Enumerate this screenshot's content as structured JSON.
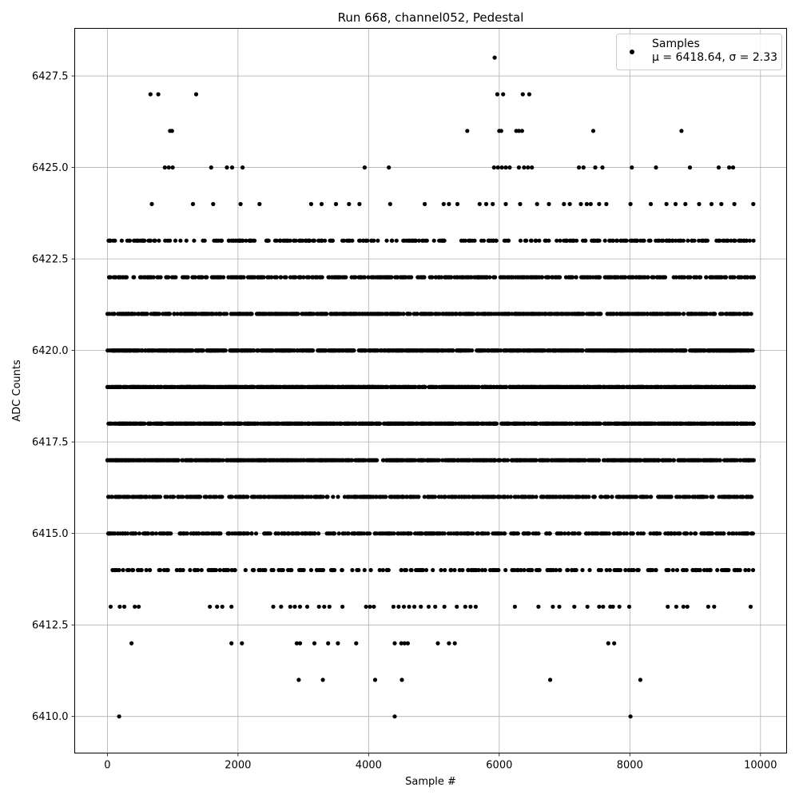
{
  "chart_data": {
    "type": "scatter",
    "title": "Run 668, channel052, Pedestal",
    "xlabel": "Sample #",
    "ylabel": "ADC Counts",
    "xlim": [
      -500,
      10400
    ],
    "ylim": [
      6409.0,
      6428.8
    ],
    "xticks": [
      0,
      2000,
      4000,
      6000,
      8000,
      10000
    ],
    "xtick_labels": [
      "0",
      "2000",
      "4000",
      "6000",
      "8000",
      "10000"
    ],
    "yticks": [
      6410.0,
      6412.5,
      6415.0,
      6417.5,
      6420.0,
      6422.5,
      6425.0,
      6427.5
    ],
    "ytick_labels": [
      "6410.0",
      "6412.5",
      "6415.0",
      "6417.5",
      "6420.0",
      "6422.5",
      "6425.0",
      "6427.5"
    ],
    "grid": true,
    "legend_position": "top-right",
    "marker_color": "#000000",
    "series": [
      {
        "name": "Samples",
        "stats_label": "μ = 6418.64, σ = 2.33",
        "dense_levels": [
          {
            "y": 6414,
            "x_min": 0,
            "x_max": 9900,
            "count": 240
          },
          {
            "y": 6415,
            "x_min": 0,
            "x_max": 9900,
            "count": 420
          },
          {
            "y": 6416,
            "x_min": 0,
            "x_max": 9900,
            "count": 520
          },
          {
            "y": 6417,
            "x_min": 0,
            "x_max": 9900,
            "count": 900
          },
          {
            "y": 6418,
            "x_min": 0,
            "x_max": 9900,
            "count": 1100
          },
          {
            "y": 6419,
            "x_min": 0,
            "x_max": 9900,
            "count": 1150
          },
          {
            "y": 6420,
            "x_min": 0,
            "x_max": 9900,
            "count": 950
          },
          {
            "y": 6421,
            "x_min": 0,
            "x_max": 9900,
            "count": 700
          },
          {
            "y": 6422,
            "x_min": 0,
            "x_max": 9900,
            "count": 500
          },
          {
            "y": 6423,
            "x_min": 0,
            "x_max": 9900,
            "count": 300
          }
        ],
        "sparse_points": [
          {
            "x": 180,
            "y": 6410
          },
          {
            "x": 4400,
            "y": 6410
          },
          {
            "x": 8010,
            "y": 6410
          },
          {
            "x": 2930,
            "y": 6411
          },
          {
            "x": 3300,
            "y": 6411
          },
          {
            "x": 4100,
            "y": 6411
          },
          {
            "x": 4510,
            "y": 6411
          },
          {
            "x": 6780,
            "y": 6411
          },
          {
            "x": 8160,
            "y": 6411
          },
          {
            "x": 370,
            "y": 6412
          },
          {
            "x": 1900,
            "y": 6412
          },
          {
            "x": 2060,
            "y": 6412
          },
          {
            "x": 2900,
            "y": 6412
          },
          {
            "x": 2950,
            "y": 6412
          },
          {
            "x": 3170,
            "y": 6412
          },
          {
            "x": 3380,
            "y": 6412
          },
          {
            "x": 3530,
            "y": 6412
          },
          {
            "x": 3810,
            "y": 6412
          },
          {
            "x": 4400,
            "y": 6412
          },
          {
            "x": 4500,
            "y": 6412
          },
          {
            "x": 4550,
            "y": 6412
          },
          {
            "x": 4600,
            "y": 6412
          },
          {
            "x": 5060,
            "y": 6412
          },
          {
            "x": 5230,
            "y": 6412
          },
          {
            "x": 5320,
            "y": 6412
          },
          {
            "x": 7670,
            "y": 6412
          },
          {
            "x": 7760,
            "y": 6412
          },
          {
            "x": 50,
            "y": 6413
          },
          {
            "x": 190,
            "y": 6413
          },
          {
            "x": 260,
            "y": 6413
          },
          {
            "x": 420,
            "y": 6413
          },
          {
            "x": 480,
            "y": 6413
          },
          {
            "x": 1570,
            "y": 6413
          },
          {
            "x": 1680,
            "y": 6413
          },
          {
            "x": 1760,
            "y": 6413
          },
          {
            "x": 1900,
            "y": 6413
          },
          {
            "x": 2540,
            "y": 6413
          },
          {
            "x": 2660,
            "y": 6413
          },
          {
            "x": 2800,
            "y": 6413
          },
          {
            "x": 2870,
            "y": 6413
          },
          {
            "x": 2950,
            "y": 6413
          },
          {
            "x": 3060,
            "y": 6413
          },
          {
            "x": 3240,
            "y": 6413
          },
          {
            "x": 3320,
            "y": 6413
          },
          {
            "x": 3400,
            "y": 6413
          },
          {
            "x": 3600,
            "y": 6413
          },
          {
            "x": 3960,
            "y": 6413
          },
          {
            "x": 4020,
            "y": 6413
          },
          {
            "x": 4080,
            "y": 6413
          },
          {
            "x": 4380,
            "y": 6413
          },
          {
            "x": 4460,
            "y": 6413
          },
          {
            "x": 4540,
            "y": 6413
          },
          {
            "x": 4620,
            "y": 6413
          },
          {
            "x": 4700,
            "y": 6413
          },
          {
            "x": 4800,
            "y": 6413
          },
          {
            "x": 4920,
            "y": 6413
          },
          {
            "x": 5020,
            "y": 6413
          },
          {
            "x": 5160,
            "y": 6413
          },
          {
            "x": 5350,
            "y": 6413
          },
          {
            "x": 5480,
            "y": 6413
          },
          {
            "x": 5560,
            "y": 6413
          },
          {
            "x": 5640,
            "y": 6413
          },
          {
            "x": 6240,
            "y": 6413
          },
          {
            "x": 6600,
            "y": 6413
          },
          {
            "x": 6820,
            "y": 6413
          },
          {
            "x": 6920,
            "y": 6413
          },
          {
            "x": 7150,
            "y": 6413
          },
          {
            "x": 7350,
            "y": 6413
          },
          {
            "x": 7530,
            "y": 6413
          },
          {
            "x": 7590,
            "y": 6413
          },
          {
            "x": 7700,
            "y": 6413
          },
          {
            "x": 7740,
            "y": 6413
          },
          {
            "x": 7840,
            "y": 6413
          },
          {
            "x": 7990,
            "y": 6413
          },
          {
            "x": 8580,
            "y": 6413
          },
          {
            "x": 8710,
            "y": 6413
          },
          {
            "x": 8820,
            "y": 6413
          },
          {
            "x": 8880,
            "y": 6413
          },
          {
            "x": 9200,
            "y": 6413
          },
          {
            "x": 9290,
            "y": 6413
          },
          {
            "x": 9850,
            "y": 6413
          },
          {
            "x": 680,
            "y": 6424
          },
          {
            "x": 1310,
            "y": 6424
          },
          {
            "x": 1620,
            "y": 6424
          },
          {
            "x": 2040,
            "y": 6424
          },
          {
            "x": 2330,
            "y": 6424
          },
          {
            "x": 3120,
            "y": 6424
          },
          {
            "x": 3280,
            "y": 6424
          },
          {
            "x": 3500,
            "y": 6424
          },
          {
            "x": 3700,
            "y": 6424
          },
          {
            "x": 3860,
            "y": 6424
          },
          {
            "x": 4330,
            "y": 6424
          },
          {
            "x": 4860,
            "y": 6424
          },
          {
            "x": 5150,
            "y": 6424
          },
          {
            "x": 5230,
            "y": 6424
          },
          {
            "x": 5360,
            "y": 6424
          },
          {
            "x": 5700,
            "y": 6424
          },
          {
            "x": 5800,
            "y": 6424
          },
          {
            "x": 5900,
            "y": 6424
          },
          {
            "x": 6100,
            "y": 6424
          },
          {
            "x": 6320,
            "y": 6424
          },
          {
            "x": 6580,
            "y": 6424
          },
          {
            "x": 6760,
            "y": 6424
          },
          {
            "x": 6990,
            "y": 6424
          },
          {
            "x": 7080,
            "y": 6424
          },
          {
            "x": 7250,
            "y": 6424
          },
          {
            "x": 7340,
            "y": 6424
          },
          {
            "x": 7400,
            "y": 6424
          },
          {
            "x": 7530,
            "y": 6424
          },
          {
            "x": 7640,
            "y": 6424
          },
          {
            "x": 8010,
            "y": 6424
          },
          {
            "x": 8320,
            "y": 6424
          },
          {
            "x": 8560,
            "y": 6424
          },
          {
            "x": 8700,
            "y": 6424
          },
          {
            "x": 8850,
            "y": 6424
          },
          {
            "x": 9060,
            "y": 6424
          },
          {
            "x": 9250,
            "y": 6424
          },
          {
            "x": 9400,
            "y": 6424
          },
          {
            "x": 9600,
            "y": 6424
          },
          {
            "x": 9890,
            "y": 6424
          },
          {
            "x": 880,
            "y": 6425
          },
          {
            "x": 940,
            "y": 6425
          },
          {
            "x": 1000,
            "y": 6425
          },
          {
            "x": 1590,
            "y": 6425
          },
          {
            "x": 1830,
            "y": 6425
          },
          {
            "x": 1910,
            "y": 6425
          },
          {
            "x": 2070,
            "y": 6425
          },
          {
            "x": 3940,
            "y": 6425
          },
          {
            "x": 4310,
            "y": 6425
          },
          {
            "x": 5920,
            "y": 6425
          },
          {
            "x": 5980,
            "y": 6425
          },
          {
            "x": 6040,
            "y": 6425
          },
          {
            "x": 6100,
            "y": 6425
          },
          {
            "x": 6160,
            "y": 6425
          },
          {
            "x": 6300,
            "y": 6425
          },
          {
            "x": 6380,
            "y": 6425
          },
          {
            "x": 6440,
            "y": 6425
          },
          {
            "x": 6500,
            "y": 6425
          },
          {
            "x": 7220,
            "y": 6425
          },
          {
            "x": 7290,
            "y": 6425
          },
          {
            "x": 7470,
            "y": 6425
          },
          {
            "x": 7580,
            "y": 6425
          },
          {
            "x": 8030,
            "y": 6425
          },
          {
            "x": 8400,
            "y": 6425
          },
          {
            "x": 8920,
            "y": 6425
          },
          {
            "x": 9360,
            "y": 6425
          },
          {
            "x": 9520,
            "y": 6425
          },
          {
            "x": 9580,
            "y": 6425
          },
          {
            "x": 960,
            "y": 6426
          },
          {
            "x": 990,
            "y": 6426
          },
          {
            "x": 5510,
            "y": 6426
          },
          {
            "x": 6000,
            "y": 6426
          },
          {
            "x": 6030,
            "y": 6426
          },
          {
            "x": 6260,
            "y": 6426
          },
          {
            "x": 6300,
            "y": 6426
          },
          {
            "x": 6350,
            "y": 6426
          },
          {
            "x": 7440,
            "y": 6426
          },
          {
            "x": 8790,
            "y": 6426
          },
          {
            "x": 660,
            "y": 6427
          },
          {
            "x": 780,
            "y": 6427
          },
          {
            "x": 1360,
            "y": 6427
          },
          {
            "x": 5970,
            "y": 6427
          },
          {
            "x": 6060,
            "y": 6427
          },
          {
            "x": 6360,
            "y": 6427
          },
          {
            "x": 6460,
            "y": 6427
          },
          {
            "x": 5930,
            "y": 6428
          }
        ]
      }
    ]
  }
}
